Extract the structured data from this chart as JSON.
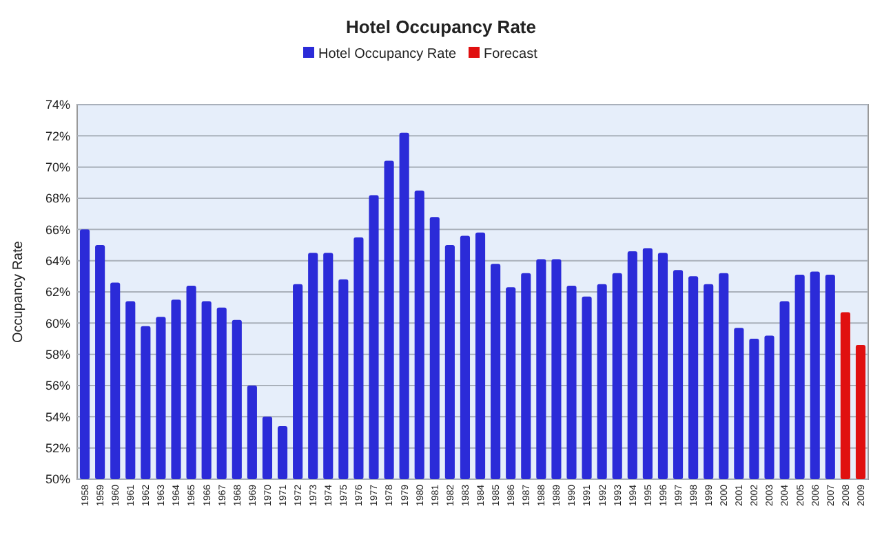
{
  "chart_data": {
    "type": "bar",
    "title": "Hotel Occupancy Rate",
    "ylabel": "Occupancy Rate",
    "categories": [
      "1958",
      "1959",
      "1960",
      "1961",
      "1962",
      "1963",
      "1964",
      "1965",
      "1966",
      "1967",
      "1968",
      "1969",
      "1970",
      "1971",
      "1972",
      "1973",
      "1974",
      "1975",
      "1976",
      "1977",
      "1978",
      "1979",
      "1980",
      "1981",
      "1982",
      "1983",
      "1984",
      "1985",
      "1986",
      "1987",
      "1988",
      "1989",
      "1990",
      "1991",
      "1992",
      "1993",
      "1994",
      "1995",
      "1996",
      "1997",
      "1998",
      "1999",
      "2000",
      "2001",
      "2002",
      "2003",
      "2004",
      "2005",
      "2006",
      "2007",
      "2008",
      "2009"
    ],
    "series": [
      {
        "name": "Hotel Occupancy Rate",
        "color": "#2b2bd8",
        "values": [
          66.0,
          65.0,
          62.6,
          61.4,
          59.8,
          60.4,
          61.5,
          62.4,
          61.4,
          61.0,
          60.2,
          56.0,
          54.0,
          53.4,
          62.5,
          64.5,
          64.5,
          62.8,
          65.5,
          68.2,
          70.4,
          72.2,
          68.5,
          66.8,
          65.0,
          65.6,
          65.8,
          63.8,
          62.3,
          63.2,
          64.1,
          64.1,
          62.4,
          61.7,
          62.5,
          63.2,
          64.6,
          64.8,
          64.5,
          63.4,
          63.0,
          62.5,
          63.2,
          59.7,
          59.0,
          59.2,
          61.4,
          63.1,
          63.3,
          63.1,
          null,
          null
        ]
      },
      {
        "name": "Forecast",
        "color": "#e01010",
        "values": [
          null,
          null,
          null,
          null,
          null,
          null,
          null,
          null,
          null,
          null,
          null,
          null,
          null,
          null,
          null,
          null,
          null,
          null,
          null,
          null,
          null,
          null,
          null,
          null,
          null,
          null,
          null,
          null,
          null,
          null,
          null,
          null,
          null,
          null,
          null,
          null,
          null,
          null,
          null,
          null,
          null,
          null,
          null,
          null,
          null,
          null,
          null,
          null,
          null,
          null,
          60.7,
          58.6
        ]
      }
    ],
    "ylim": [
      50,
      74
    ],
    "yticks": [
      {
        "value": 50,
        "label": "50%"
      },
      {
        "value": 52,
        "label": "52%"
      },
      {
        "value": 54,
        "label": "54%"
      },
      {
        "value": 56,
        "label": "56%"
      },
      {
        "value": 58,
        "label": "58%"
      },
      {
        "value": 60,
        "label": "60%"
      },
      {
        "value": 62,
        "label": "62%"
      },
      {
        "value": 64,
        "label": "64%"
      },
      {
        "value": 66,
        "label": "66%"
      },
      {
        "value": 68,
        "label": "68%"
      },
      {
        "value": 70,
        "label": "70%"
      },
      {
        "value": 72,
        "label": "72%"
      },
      {
        "value": 74,
        "label": "74%"
      }
    ],
    "grid": "y",
    "legend": "top"
  }
}
